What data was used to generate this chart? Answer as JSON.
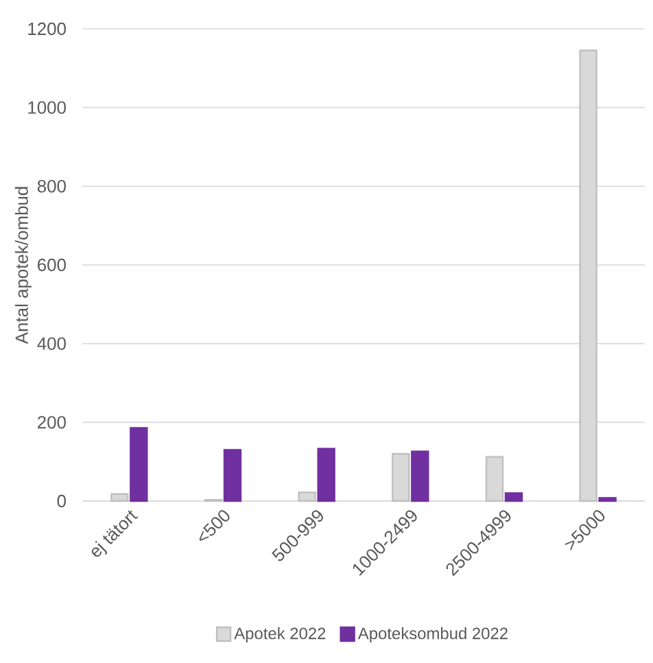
{
  "chart_data": {
    "type": "bar",
    "ylabel": "Antal apotek/ombud",
    "categories": [
      "ej tätort",
      "<500",
      "500-999",
      "1000-2499",
      "2500-4999",
      ">5000"
    ],
    "series": [
      {
        "name": "Apotek 2022",
        "color": "#d9d9d9",
        "values": [
          18,
          3,
          22,
          120,
          112,
          1145
        ]
      },
      {
        "name": "Apoteksombud 2022",
        "color": "#7030a0",
        "values": [
          186,
          130,
          133,
          126,
          20,
          8
        ]
      }
    ],
    "ylim": [
      0,
      1200
    ],
    "yticks": [
      0,
      200,
      400,
      600,
      800,
      1000,
      1200
    ],
    "grid": "y",
    "legend": "bottom"
  }
}
